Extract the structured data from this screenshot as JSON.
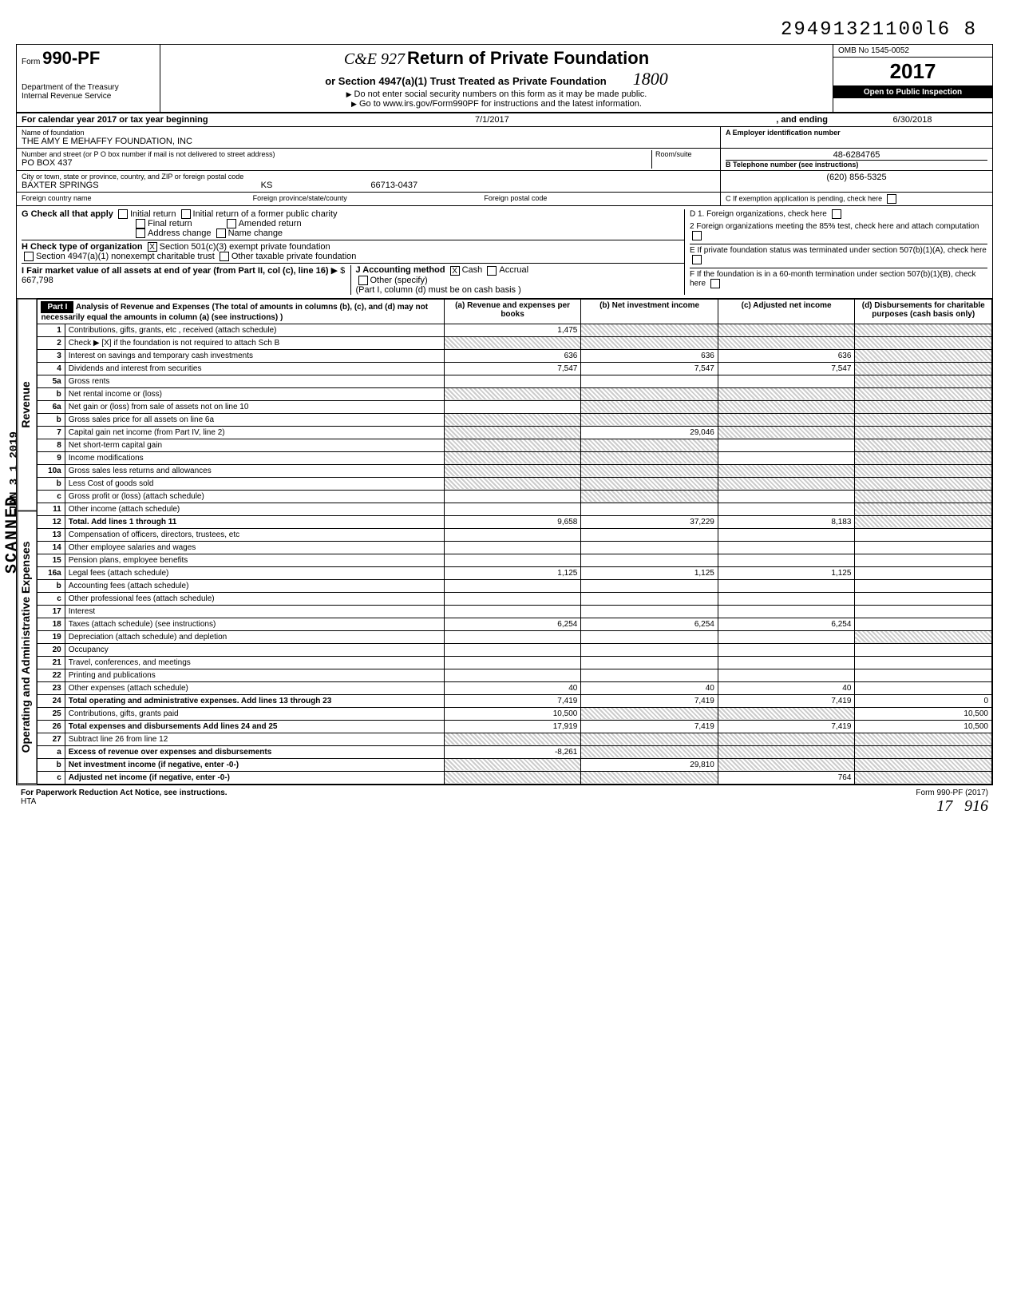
{
  "stamp_number": "29491321100l6  8",
  "header": {
    "form_prefix": "Form",
    "form_number": "990-PF",
    "dept": "Department of the Treasury",
    "irs": "Internal Revenue Service",
    "title": "Return of Private Foundation",
    "subtitle": "or Section 4947(a)(1) Trust Treated as Private Foundation",
    "note1": "Do not enter social security numbers on this form as it may be made public.",
    "note2": "Go to www.irs.gov/Form990PF for instructions and the latest information.",
    "omb": "OMB No 1545-0052",
    "year": "2017",
    "inspection": "Open to Public Inspection",
    "ce_stamp": "C&E 927",
    "hand_stamp": "1800"
  },
  "calendar": {
    "label": "For calendar year 2017 or tax year beginning",
    "begin": "7/1/2017",
    "mid": ", and ending",
    "end": "6/30/2018"
  },
  "foundation": {
    "name_label": "Name of foundation",
    "name": "THE AMY E  MEHAFFY FOUNDATION, INC",
    "addr_label": "Number and street (or P O  box number if mail is not delivered to street address)",
    "room_label": "Room/suite",
    "addr": "PO BOX 437",
    "city_label": "City or town, state or province, country, and ZIP or foreign postal code",
    "city": "BAXTER SPRINGS",
    "state": "KS",
    "zip": "66713-0437",
    "foreign_country_label": "Foreign country name",
    "foreign_province_label": "Foreign province/state/county",
    "foreign_postal_label": "Foreign postal code"
  },
  "ein": {
    "label_a": "A  Employer identification number",
    "value_a": "48-6284765",
    "label_b": "B  Telephone number (see instructions)",
    "value_b": "(620) 856-5325",
    "label_c": "C   If exemption application is pending, check here"
  },
  "section_g": {
    "g_label": "G   Check all that apply",
    "initial": "Initial return",
    "initial_former": "Initial return of a former public charity",
    "final": "Final return",
    "amended": "Amended return",
    "addr_change": "Address change",
    "name_change": "Name change",
    "h_label": "H   Check type of organization",
    "h_501c3": "Section 501(c)(3) exempt private foundation",
    "h_4947": "Section 4947(a)(1) nonexempt charitable trust",
    "h_other_tax": "Other taxable private foundation",
    "i_label": "I     Fair market value of all assets at end of year (from Part II, col  (c), line 16)",
    "i_value": "667,798",
    "j_label": "J    Accounting method",
    "j_cash": "Cash",
    "j_accrual": "Accrual",
    "j_other": "Other (specify)",
    "j_note": "(Part I, column (d) must be on cash basis )",
    "d1": "D  1. Foreign organizations, check here",
    "d2": "2  Foreign organizations meeting the 85% test, check here and attach computation",
    "e": "E   If private foundation status was terminated under section 507(b)(1)(A), check here",
    "f": "F   If the foundation is in a 60-month termination under section 507(b)(1)(B), check here"
  },
  "part1": {
    "header": "Part I",
    "title": "Analysis of Revenue and Expenses",
    "title_note": "(The total of amounts in columns (b), (c), and (d) may not necessarily equal the amounts in column (a) (see instructions) )",
    "col_a": "(a) Revenue and expenses per books",
    "col_b": "(b) Net investment income",
    "col_c": "(c) Adjusted net income",
    "col_d": "(d) Disbursements for charitable purposes (cash basis only)"
  },
  "side_labels": {
    "revenue": "Revenue",
    "expenses": "Operating and Administrative Expenses",
    "scanned": "SCANNED",
    "datestamp": "JAN 3 1 2019"
  },
  "rows": [
    {
      "n": "1",
      "desc": "Contributions, gifts, grants, etc , received (attach schedule)",
      "a": "1,475",
      "b": "shaded",
      "c": "shaded",
      "d": "shaded"
    },
    {
      "n": "2",
      "desc": "Check ▶ [X] if the foundation is not required to attach Sch  B",
      "a": "shaded",
      "b": "shaded",
      "c": "shaded",
      "d": "shaded"
    },
    {
      "n": "3",
      "desc": "Interest on savings and temporary cash investments",
      "a": "636",
      "b": "636",
      "c": "636",
      "d": "shaded"
    },
    {
      "n": "4",
      "desc": "Dividends and interest from securities",
      "a": "7,547",
      "b": "7,547",
      "c": "7,547",
      "d": "shaded"
    },
    {
      "n": "5a",
      "desc": "Gross rents",
      "a": "",
      "b": "",
      "c": "",
      "d": "shaded"
    },
    {
      "n": "b",
      "desc": "Net rental income or (loss)",
      "a": "shaded",
      "b": "shaded",
      "c": "shaded",
      "d": "shaded"
    },
    {
      "n": "6a",
      "desc": "Net gain or (loss) from sale of assets not on line 10",
      "a": "",
      "b": "shaded",
      "c": "shaded",
      "d": "shaded"
    },
    {
      "n": "b",
      "desc": "Gross sales price for all assets on line 6a",
      "a": "shaded",
      "b": "shaded",
      "c": "shaded",
      "d": "shaded"
    },
    {
      "n": "7",
      "desc": "Capital gain net income (from Part IV, line 2)",
      "a": "shaded",
      "b": "29,046",
      "c": "shaded",
      "d": "shaded"
    },
    {
      "n": "8",
      "desc": "Net short-term capital gain",
      "a": "shaded",
      "b": "shaded",
      "c": "",
      "d": "shaded"
    },
    {
      "n": "9",
      "desc": "Income modifications",
      "a": "shaded",
      "b": "shaded",
      "c": "",
      "d": "shaded"
    },
    {
      "n": "10a",
      "desc": "Gross sales less returns and allowances",
      "a": "shaded",
      "b": "shaded",
      "c": "shaded",
      "d": "shaded"
    },
    {
      "n": "b",
      "desc": "Less  Cost of goods sold",
      "a": "shaded",
      "b": "shaded",
      "c": "shaded",
      "d": "shaded"
    },
    {
      "n": "c",
      "desc": "Gross profit or (loss) (attach schedule)",
      "a": "",
      "b": "shaded",
      "c": "",
      "d": "shaded"
    },
    {
      "n": "11",
      "desc": "Other income (attach schedule)",
      "a": "",
      "b": "",
      "c": "",
      "d": "shaded"
    },
    {
      "n": "12",
      "desc": "Total. Add lines 1 through 11",
      "a": "9,658",
      "b": "37,229",
      "c": "8,183",
      "d": "shaded",
      "bold": true
    },
    {
      "n": "13",
      "desc": "Compensation of officers, directors, trustees, etc",
      "a": "",
      "b": "",
      "c": "",
      "d": ""
    },
    {
      "n": "14",
      "desc": "Other employee salaries and wages",
      "a": "",
      "b": "",
      "c": "",
      "d": ""
    },
    {
      "n": "15",
      "desc": "Pension plans, employee benefits",
      "a": "",
      "b": "",
      "c": "",
      "d": ""
    },
    {
      "n": "16a",
      "desc": "Legal fees (attach schedule)",
      "a": "1,125",
      "b": "1,125",
      "c": "1,125",
      "d": ""
    },
    {
      "n": "b",
      "desc": "Accounting fees (attach schedule)",
      "a": "",
      "b": "",
      "c": "",
      "d": ""
    },
    {
      "n": "c",
      "desc": "Other professional fees (attach schedule)",
      "a": "",
      "b": "",
      "c": "",
      "d": ""
    },
    {
      "n": "17",
      "desc": "Interest",
      "a": "",
      "b": "",
      "c": "",
      "d": ""
    },
    {
      "n": "18",
      "desc": "Taxes (attach schedule) (see instructions)",
      "a": "6,254",
      "b": "6,254",
      "c": "6,254",
      "d": ""
    },
    {
      "n": "19",
      "desc": "Depreciation (attach schedule) and depletion",
      "a": "",
      "b": "",
      "c": "",
      "d": "shaded"
    },
    {
      "n": "20",
      "desc": "Occupancy",
      "a": "",
      "b": "",
      "c": "",
      "d": ""
    },
    {
      "n": "21",
      "desc": "Travel, conferences, and meetings",
      "a": "",
      "b": "",
      "c": "",
      "d": ""
    },
    {
      "n": "22",
      "desc": "Printing and publications",
      "a": "",
      "b": "",
      "c": "",
      "d": ""
    },
    {
      "n": "23",
      "desc": "Other expenses (attach schedule)",
      "a": "40",
      "b": "40",
      "c": "40",
      "d": ""
    },
    {
      "n": "24",
      "desc": "Total operating and administrative expenses. Add lines 13 through 23",
      "a": "7,419",
      "b": "7,419",
      "c": "7,419",
      "d": "0",
      "bold": true
    },
    {
      "n": "25",
      "desc": "Contributions, gifts, grants paid",
      "a": "10,500",
      "b": "shaded",
      "c": "shaded",
      "d": "10,500"
    },
    {
      "n": "26",
      "desc": "Total expenses and disbursements  Add lines 24 and 25",
      "a": "17,919",
      "b": "7,419",
      "c": "7,419",
      "d": "10,500",
      "bold": true
    },
    {
      "n": "27",
      "desc": "Subtract line 26 from line 12",
      "a": "shaded",
      "b": "shaded",
      "c": "shaded",
      "d": "shaded"
    },
    {
      "n": "a",
      "desc": "Excess of revenue over expenses and disbursements",
      "a": "-8,261",
      "b": "shaded",
      "c": "shaded",
      "d": "shaded",
      "bold": true
    },
    {
      "n": "b",
      "desc": "Net investment income (if negative, enter -0-)",
      "a": "shaded",
      "b": "29,810",
      "c": "shaded",
      "d": "shaded",
      "bold": true
    },
    {
      "n": "c",
      "desc": "Adjusted net income (if negative, enter -0-)",
      "a": "shaded",
      "b": "shaded",
      "c": "764",
      "d": "shaded",
      "bold": true
    }
  ],
  "footer": {
    "left": "For Paperwork Reduction Act Notice, see instructions.",
    "hta": "HTA",
    "right": "Form 990-PF (2017)",
    "hand1": "17",
    "hand2": "916"
  }
}
